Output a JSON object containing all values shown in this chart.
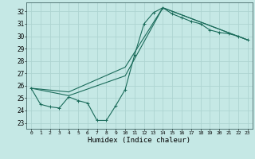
{
  "background_color": "#c5e8e5",
  "grid_color": "#aed4d1",
  "line_color": "#1a6b5a",
  "xlabel": "Humidex (Indice chaleur)",
  "xlim": [
    -0.5,
    23.5
  ],
  "ylim": [
    22.5,
    32.7
  ],
  "xtick_labels": [
    "0",
    "1",
    "2",
    "3",
    "4",
    "5",
    "6",
    "7",
    "8",
    "9",
    "10",
    "11",
    "12",
    "13",
    "14",
    "15",
    "16",
    "17",
    "18",
    "19",
    "20",
    "21",
    "22",
    "23"
  ],
  "ytick_labels": [
    "23",
    "24",
    "25",
    "26",
    "27",
    "28",
    "29",
    "30",
    "31",
    "32"
  ],
  "line1_x": [
    0,
    1,
    2,
    3,
    4,
    5,
    6,
    7,
    8,
    9,
    10,
    11,
    12,
    13,
    14,
    15,
    16,
    17,
    18,
    19,
    20,
    21,
    22,
    23
  ],
  "line1_y": [
    25.8,
    24.5,
    24.3,
    24.2,
    25.1,
    24.8,
    24.6,
    23.2,
    23.2,
    24.4,
    25.7,
    28.5,
    31.0,
    31.9,
    32.3,
    31.8,
    31.5,
    31.2,
    31.0,
    30.5,
    30.3,
    30.2,
    30.0,
    29.7
  ],
  "line2_x": [
    0,
    4,
    10,
    14,
    23
  ],
  "line2_y": [
    25.8,
    25.5,
    27.5,
    32.3,
    29.7
  ],
  "line3_x": [
    0,
    4,
    10,
    14,
    23
  ],
  "line3_y": [
    25.8,
    25.2,
    26.8,
    32.3,
    29.7
  ],
  "marker": "+"
}
